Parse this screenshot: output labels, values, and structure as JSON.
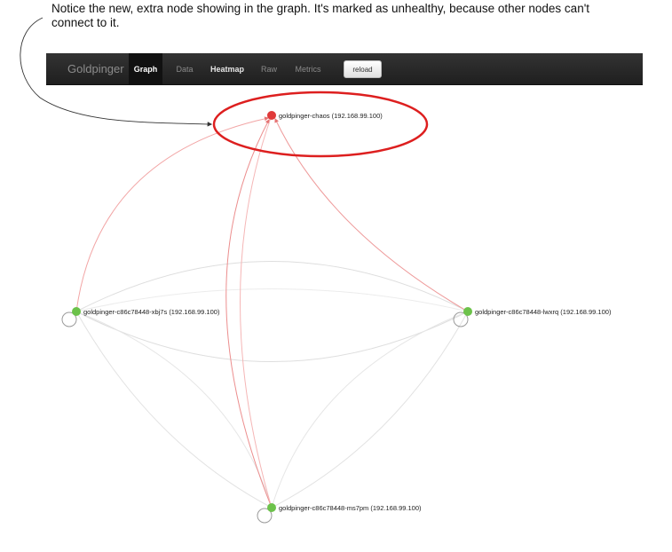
{
  "annotation": "Notice the new, extra node showing in the graph. It's marked as unhealthy, because other nodes can't connect to it.",
  "navbar": {
    "brand": "Goldpinger",
    "items": [
      {
        "label": "Graph",
        "state": "active"
      },
      {
        "label": "Data",
        "state": "dim"
      },
      {
        "label": "Heatmap",
        "state": "bright"
      },
      {
        "label": "Raw",
        "state": "dim"
      },
      {
        "label": "Metrics",
        "state": "dim"
      }
    ],
    "reload_label": "reload"
  },
  "graph": {
    "nodes": [
      {
        "label": "goldpinger-chaos (192.168.99.100)",
        "status": "unhealthy"
      },
      {
        "label": "goldpinger-c86c78448-xbj7s (192.168.99.100)",
        "status": "healthy"
      },
      {
        "label": "goldpinger-c86c78448-lwxrq (192.168.99.100)",
        "status": "healthy"
      },
      {
        "label": "goldpinger-c86c78448-ms7pm (192.168.99.100)",
        "status": "healthy"
      }
    ],
    "colors": {
      "healthy": "#6cc24a",
      "unhealthy": "#e03a3a",
      "healthy_edge": "#d9d9d9",
      "unhealthy_edge": "#f0a3a3",
      "highlight": "#dd1f1f"
    }
  }
}
